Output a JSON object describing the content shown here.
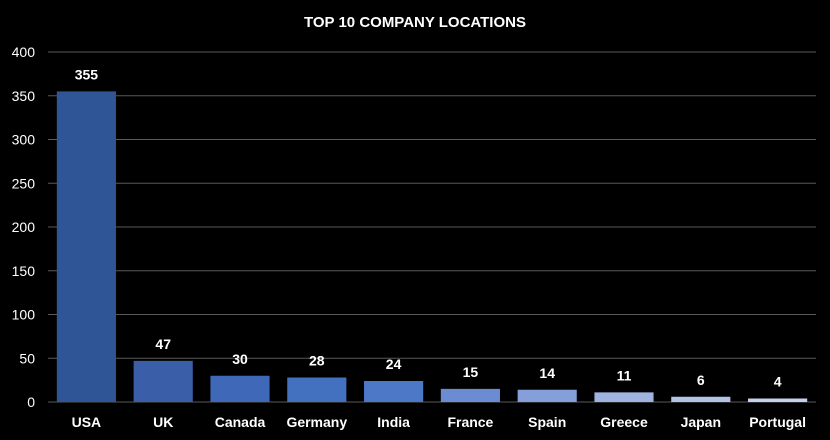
{
  "chart_data": {
    "type": "bar",
    "title": "TOP 10 COMPANY LOCATIONS",
    "xlabel": "",
    "ylabel": "",
    "categories": [
      "USA",
      "UK",
      "Canada",
      "Germany",
      "India",
      "France",
      "Spain",
      "Greece",
      "Japan",
      "Portugal"
    ],
    "values": [
      355,
      47,
      30,
      28,
      24,
      15,
      14,
      11,
      6,
      4
    ],
    "ylim": [
      0,
      400
    ],
    "yticks": [
      0,
      50,
      100,
      150,
      200,
      250,
      300,
      350,
      400
    ],
    "grid": true,
    "legend": "none",
    "bar_colors": [
      "#2f5597",
      "#3a5fa8",
      "#3f68b8",
      "#4470c0",
      "#4d78c8",
      "#6b8cd2",
      "#849fd9",
      "#9fb3e0",
      "#b3c3e6",
      "#c5d1ec"
    ],
    "background": "#000000",
    "text_color": "#ffffff",
    "grid_color": "#595959"
  }
}
